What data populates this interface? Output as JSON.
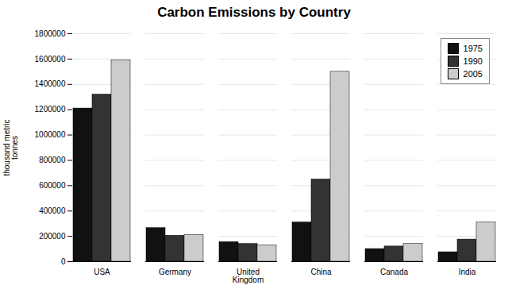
{
  "chart_data": {
    "type": "bar",
    "title": "Carbon Emissions by Country",
    "ylabel": "thousand metric\ntonnes",
    "categories": [
      "USA",
      "Germany",
      "United\nKingdom",
      "China",
      "Canada",
      "India"
    ],
    "series": [
      {
        "name": "1975",
        "color": "#111111",
        "values": [
          1210000,
          265000,
          155000,
          310000,
          100000,
          75000
        ]
      },
      {
        "name": "1990",
        "color": "#333333",
        "values": [
          1320000,
          205000,
          140000,
          650000,
          120000,
          175000
        ]
      },
      {
        "name": "2005",
        "color": "#cccccc",
        "values": [
          1590000,
          210000,
          130000,
          1500000,
          140000,
          310000
        ]
      }
    ],
    "ylim": [
      0,
      1800000
    ],
    "yticks": [
      0,
      200000,
      400000,
      600000,
      800000,
      1000000,
      1200000,
      1400000,
      1600000,
      1800000
    ],
    "grid": true,
    "legend": "upper right"
  }
}
